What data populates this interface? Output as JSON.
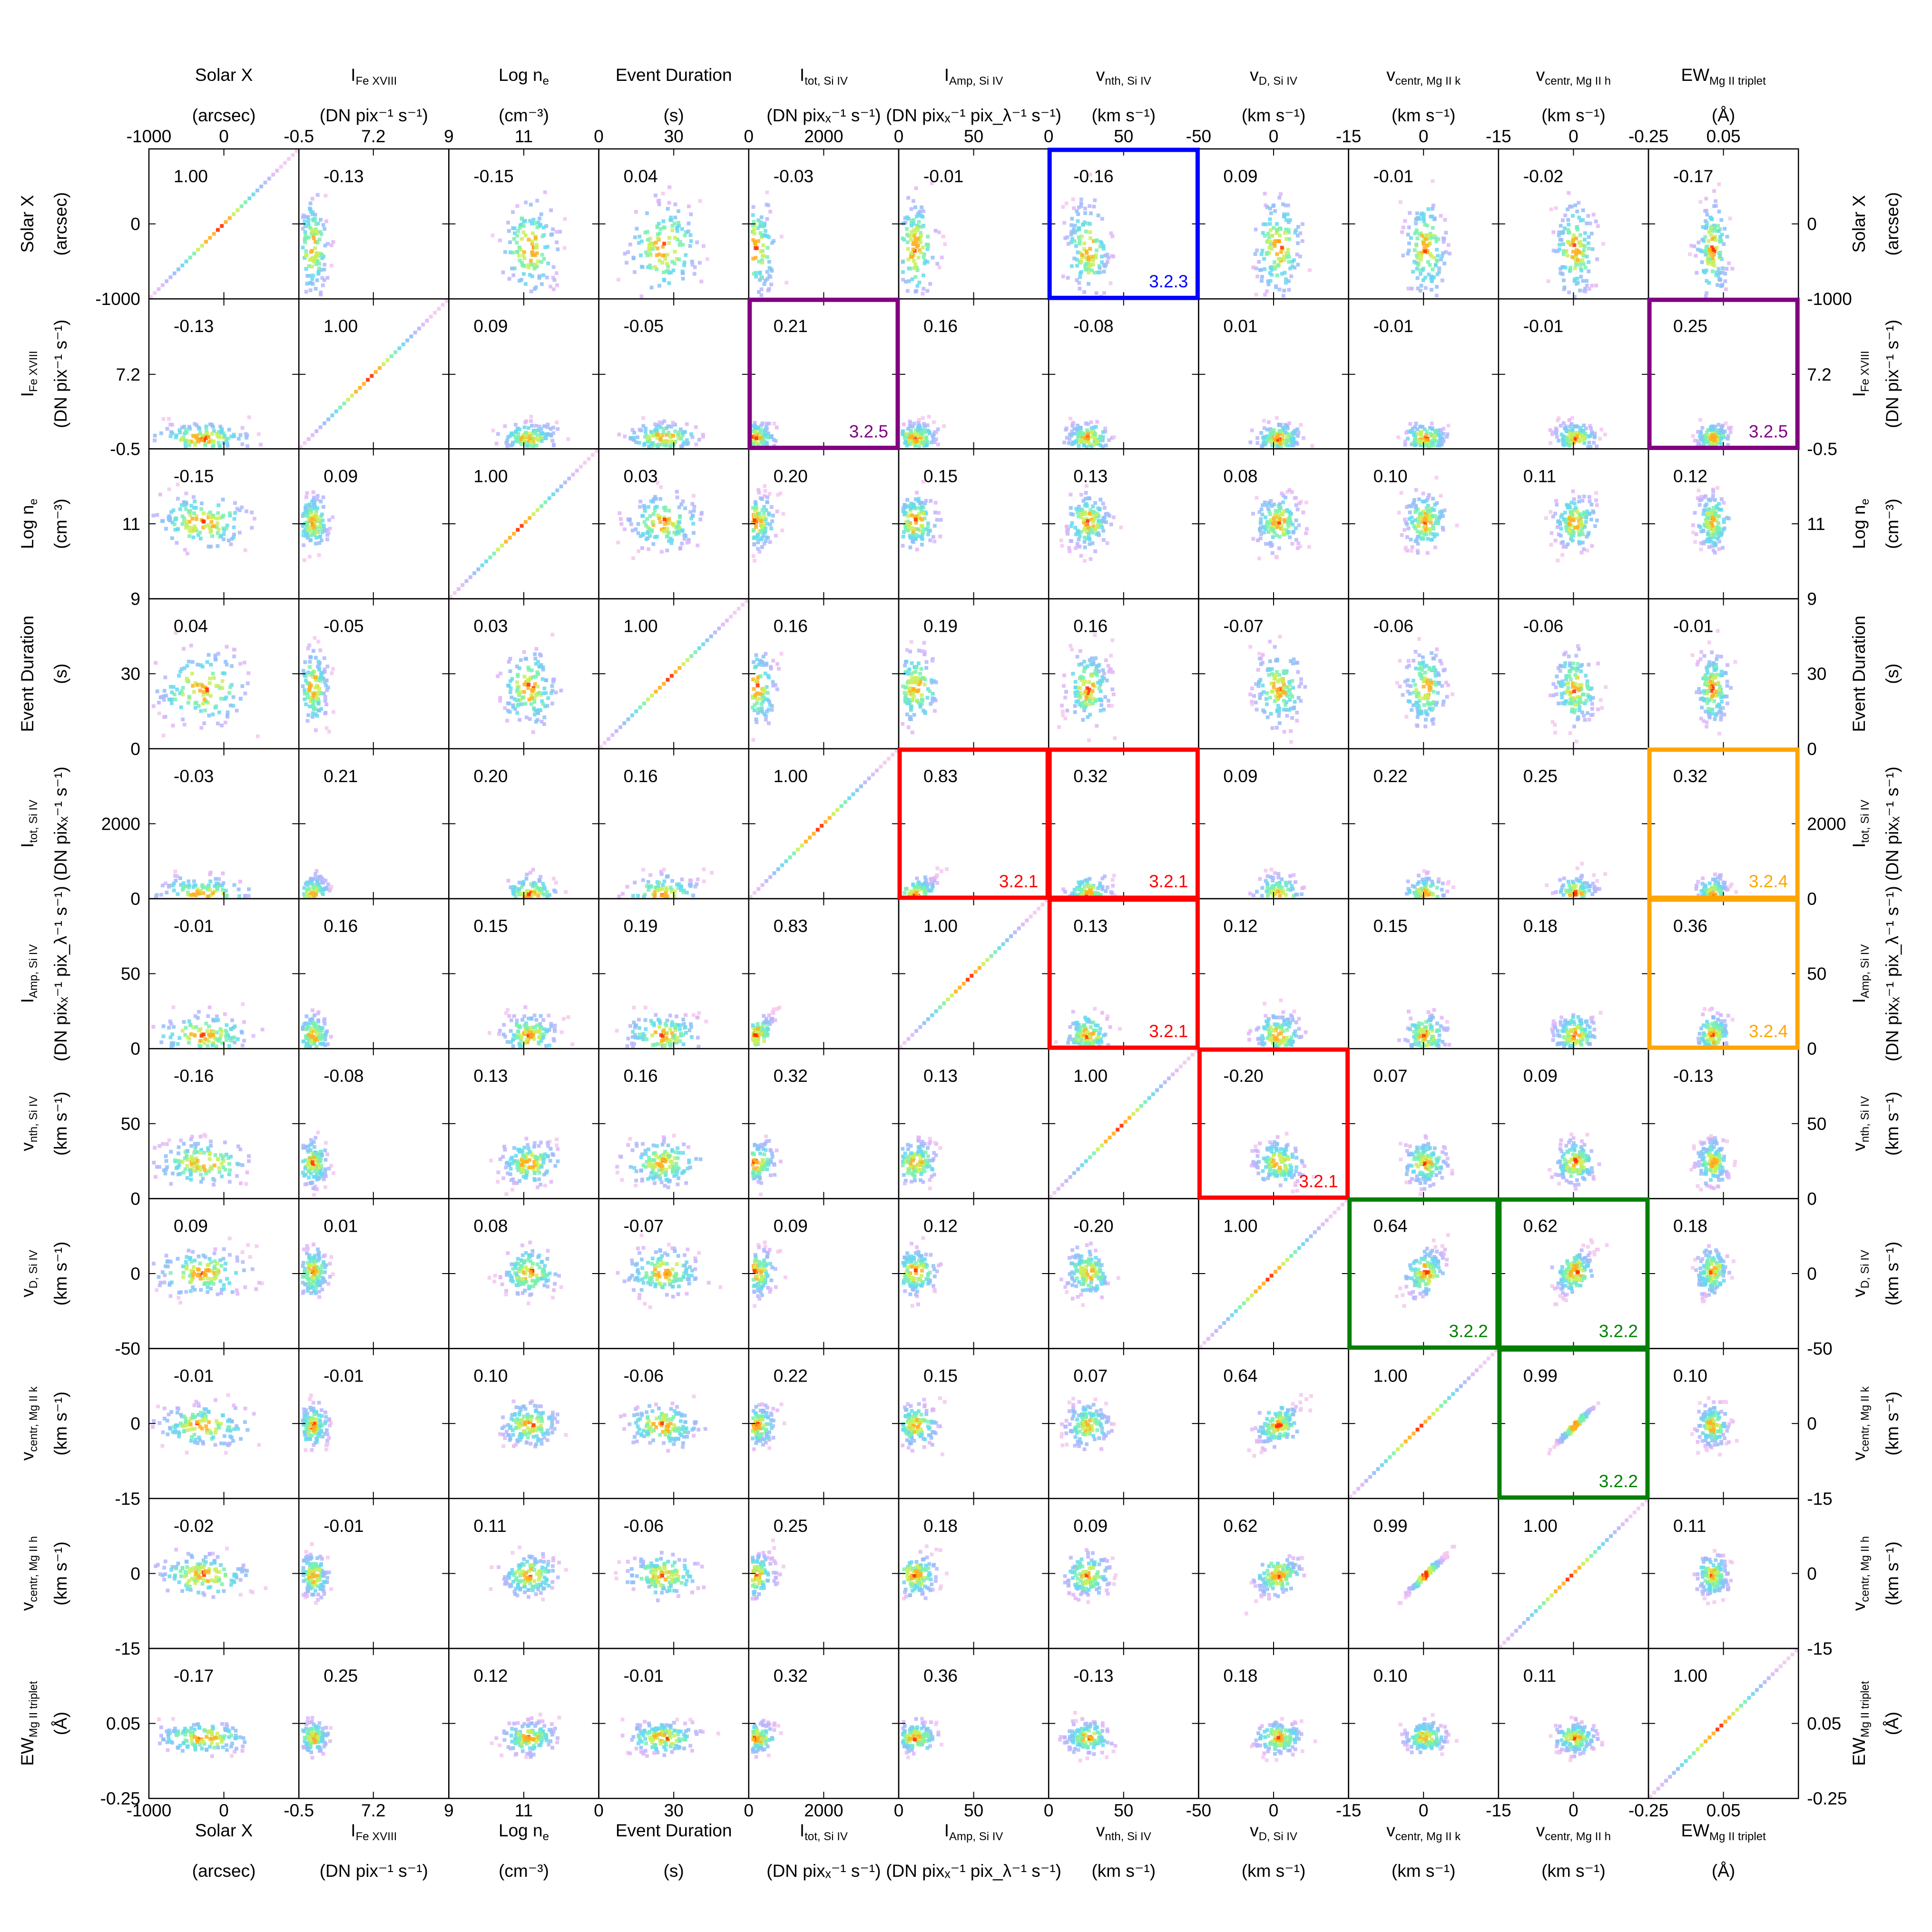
{
  "chart_data": {
    "type": "heatmap",
    "kind": "corner-plot",
    "grid": false,
    "variables": [
      {
        "id": "solarx",
        "main": "Solar X",
        "sub": "",
        "unit": "(arcsec)",
        "range": [
          -1000,
          1000
        ],
        "ticks": [
          -1000,
          0
        ],
        "tick_labels": [
          "-1000",
          "0"
        ]
      },
      {
        "id": "ife",
        "main": "I",
        "sub": "Fe XVIII",
        "unit": "(DN pix⁻¹ s⁻¹)",
        "range": [
          -0.5,
          15
        ],
        "ticks": [
          -0.5,
          7.2
        ],
        "tick_labels": [
          "-0.5",
          "7.2"
        ]
      },
      {
        "id": "logne",
        "main": "Log n",
        "sub": "e",
        "unit": "(cm⁻³)",
        "range": [
          9,
          13
        ],
        "ticks": [
          9,
          11
        ],
        "tick_labels": [
          "9",
          "11"
        ]
      },
      {
        "id": "dur",
        "main": "Event Duration",
        "sub": "",
        "unit": "(s)",
        "range": [
          0,
          60
        ],
        "ticks": [
          0,
          30
        ],
        "tick_labels": [
          "0",
          "30"
        ]
      },
      {
        "id": "itot",
        "main": "I",
        "sub": "tot, Si IV",
        "unit": "(DN pixₓ⁻¹ s⁻¹)",
        "range": [
          0,
          4000
        ],
        "ticks": [
          0,
          2000
        ],
        "tick_labels": [
          "0",
          "2000"
        ]
      },
      {
        "id": "iamp",
        "main": "I",
        "sub": "Amp, Si IV",
        "unit": "(DN pixₓ⁻¹ pix_λ⁻¹ s⁻¹)",
        "range": [
          0,
          100
        ],
        "ticks": [
          0,
          50
        ],
        "tick_labels": [
          "0",
          "50"
        ]
      },
      {
        "id": "vnth",
        "main": "v",
        "sub": "nth, Si IV",
        "unit": "(km s⁻¹)",
        "range": [
          0,
          100
        ],
        "ticks": [
          0,
          50
        ],
        "tick_labels": [
          "0",
          "50"
        ]
      },
      {
        "id": "vd",
        "main": "v",
        "sub": "D, Si IV",
        "unit": "(km s⁻¹)",
        "range": [
          -50,
          50
        ],
        "ticks": [
          -50,
          0
        ],
        "tick_labels": [
          "-50",
          "0"
        ]
      },
      {
        "id": "vmgk",
        "main": "v",
        "sub": "centr, Mg II k",
        "unit": "(km s⁻¹)",
        "range": [
          -15,
          15
        ],
        "ticks": [
          -15,
          0
        ],
        "tick_labels": [
          "-15",
          "0"
        ]
      },
      {
        "id": "vmgh",
        "main": "v",
        "sub": "centr, Mg II h",
        "unit": "(km s⁻¹)",
        "range": [
          -15,
          15
        ],
        "ticks": [
          -15,
          0
        ],
        "tick_labels": [
          "-15",
          "0"
        ]
      },
      {
        "id": "ew",
        "main": "EW",
        "sub": "Mg II triplet",
        "unit": "(Å)",
        "range": [
          -0.25,
          0.35
        ],
        "ticks": [
          -0.25,
          0.05
        ],
        "tick_labels": [
          "-0.25",
          "0.05"
        ]
      }
    ],
    "correlations": [
      [
        "1.00",
        "-0.13",
        "-0.15",
        "0.04",
        "-0.03",
        "-0.01",
        "-0.16",
        "0.09",
        "-0.01",
        "-0.02",
        "-0.17"
      ],
      [
        "-0.13",
        "1.00",
        "0.09",
        "-0.05",
        "0.21",
        "0.16",
        "-0.08",
        "0.01",
        "-0.01",
        "-0.01",
        "0.25"
      ],
      [
        "-0.15",
        "0.09",
        "1.00",
        "0.03",
        "0.20",
        "0.15",
        "0.13",
        "0.08",
        "0.10",
        "0.11",
        "0.12"
      ],
      [
        "0.04",
        "-0.05",
        "0.03",
        "1.00",
        "0.16",
        "0.19",
        "0.16",
        "-0.07",
        "-0.06",
        "-0.06",
        "-0.01"
      ],
      [
        "-0.03",
        "0.21",
        "0.20",
        "0.16",
        "1.00",
        "0.83",
        "0.32",
        "0.09",
        "0.22",
        "0.25",
        "0.32"
      ],
      [
        "-0.01",
        "0.16",
        "0.15",
        "0.19",
        "0.83",
        "1.00",
        "0.13",
        "0.12",
        "0.15",
        "0.18",
        "0.36"
      ],
      [
        "-0.16",
        "-0.08",
        "0.13",
        "0.16",
        "0.32",
        "0.13",
        "1.00",
        "-0.20",
        "0.07",
        "0.09",
        "-0.13"
      ],
      [
        "0.09",
        "0.01",
        "0.08",
        "-0.07",
        "0.09",
        "0.12",
        "-0.20",
        "1.00",
        "0.64",
        "0.62",
        "0.18"
      ],
      [
        "-0.01",
        "-0.01",
        "0.10",
        "-0.06",
        "0.22",
        "0.15",
        "0.07",
        "0.64",
        "1.00",
        "0.99",
        "0.10"
      ],
      [
        "-0.02",
        "-0.01",
        "0.11",
        "-0.06",
        "0.25",
        "0.18",
        "0.09",
        "0.62",
        "0.99",
        "1.00",
        "0.11"
      ],
      [
        "-0.17",
        "0.25",
        "0.12",
        "-0.01",
        "0.32",
        "0.36",
        "-0.13",
        "0.18",
        "0.10",
        "0.11",
        "1.00"
      ]
    ],
    "highlight_boxes": [
      {
        "row": 0,
        "col": 6,
        "label": "3.2.3",
        "color": "#0000ff"
      },
      {
        "row": 1,
        "col": 4,
        "label": "3.2.5",
        "color": "#800080"
      },
      {
        "row": 1,
        "col": 10,
        "label": "3.2.5",
        "color": "#800080"
      },
      {
        "row": 4,
        "col": 5,
        "label": "3.2.1",
        "color": "#ff0000"
      },
      {
        "row": 4,
        "col": 6,
        "label": "3.2.1",
        "color": "#ff0000"
      },
      {
        "row": 5,
        "col": 6,
        "label": "3.2.1",
        "color": "#ff0000"
      },
      {
        "row": 6,
        "col": 7,
        "label": "3.2.1",
        "color": "#ff0000"
      },
      {
        "row": 4,
        "col": 10,
        "label": "3.2.4",
        "color": "#ffa500"
      },
      {
        "row": 5,
        "col": 10,
        "label": "3.2.4",
        "color": "#ffa500"
      },
      {
        "row": 7,
        "col": 8,
        "label": "3.2.2",
        "color": "#008000"
      },
      {
        "row": 7,
        "col": 9,
        "label": "3.2.2",
        "color": "#008000"
      },
      {
        "row": 8,
        "col": 9,
        "label": "3.2.2",
        "color": "#008000"
      }
    ]
  }
}
